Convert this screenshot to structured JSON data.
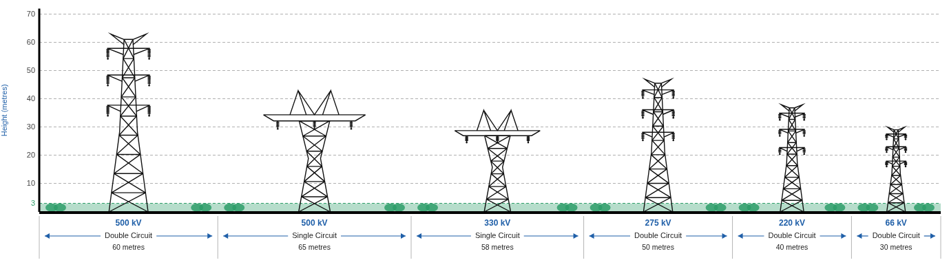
{
  "chart_data": {
    "type": "tower",
    "y_label": "Height (metres)",
    "categories": [
      "500 kV",
      "500 kV",
      "330 kV",
      "275 kV",
      "220 kV",
      "66 kV"
    ],
    "circuits": [
      "Double Circuit",
      "Single Circuit",
      "Single Circuit",
      "Double Circuit",
      "Double Circuit",
      "Double Circuit"
    ],
    "values": [
      63,
      43,
      36,
      47,
      38,
      30
    ],
    "widths": [
      60,
      65,
      58,
      50,
      40,
      30
    ],
    "width_labels": [
      "60 metres",
      "65 metres",
      "58 metres",
      "50 metres",
      "40 metres",
      "30 metres"
    ],
    "xlim": [
      0,
      303
    ],
    "ylim": [
      0,
      72
    ],
    "yticks": [
      3,
      10,
      20,
      30,
      40,
      50,
      60,
      70
    ],
    "grid": true,
    "tick_labels": "y",
    "color": "#111111",
    "label_color": "#1f5fa8",
    "band": {
      "from": 0,
      "to": 3,
      "color": "#2e9e6a"
    }
  }
}
